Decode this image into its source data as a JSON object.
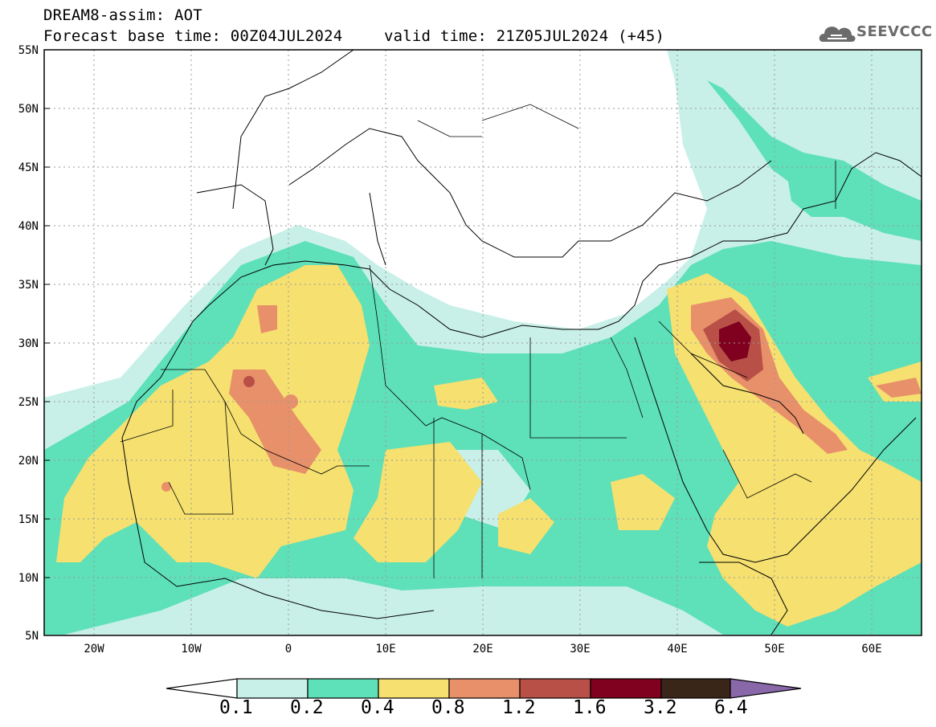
{
  "header": {
    "line1": "DREAM8-assim: AOT",
    "line2": "Forecast base time: 00Z04JUL2024",
    "line3": "valid time: 21Z05JUL2024 (+45)"
  },
  "logo": {
    "icon": "cloud-icon",
    "text": "SEEVCCC"
  },
  "map": {
    "lat_ticks": [
      "55N",
      "50N",
      "45N",
      "40N",
      "35N",
      "30N",
      "25N",
      "20N",
      "15N",
      "10N",
      "5N"
    ],
    "lon_ticks": [
      "20W",
      "10W",
      "0",
      "10E",
      "20E",
      "30E",
      "40E",
      "50E",
      "60E"
    ],
    "extent": {
      "lon": [
        -25,
        65
      ],
      "lat": [
        5,
        55
      ]
    }
  },
  "colorbar": {
    "labels": [
      "0.1",
      "0.2",
      "0.4",
      "0.8",
      "1.2",
      "1.6",
      "3.2",
      "6.4"
    ],
    "colors": [
      "#ffffff",
      "#c8f0e8",
      "#5ee0b8",
      "#f5e070",
      "#e8906a",
      "#b85048",
      "#800020",
      "#3a2618",
      "#8868a8"
    ]
  }
}
